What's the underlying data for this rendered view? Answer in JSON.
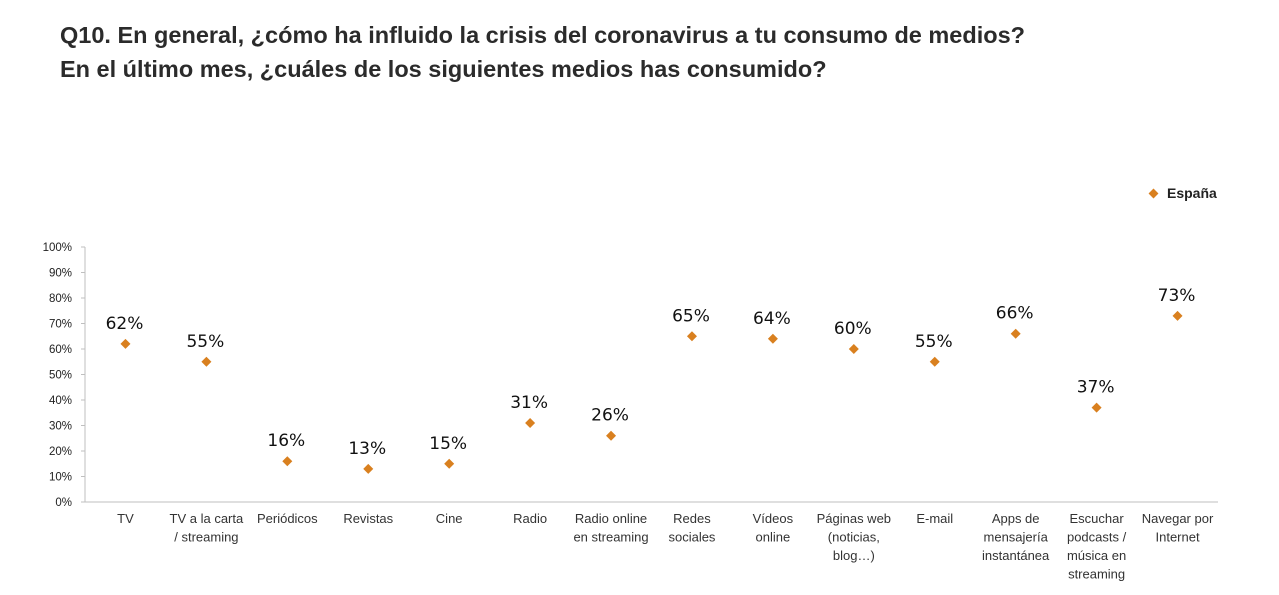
{
  "title": {
    "line1": "Q10. En general, ¿cómo ha influido la crisis del coronavirus a tu consumo de medios?",
    "line2": "En el último mes, ¿cuáles de los siguientes medios has consumido?"
  },
  "legend": {
    "label": "España",
    "marker_icon": "diamond-icon",
    "color": "#D9801F"
  },
  "chart_data": {
    "type": "scatter",
    "categories": [
      [
        "TV"
      ],
      [
        "TV a la carta",
        "/ streaming"
      ],
      [
        "Periódicos"
      ],
      [
        "Revistas"
      ],
      [
        "Cine"
      ],
      [
        "Radio"
      ],
      [
        "Radio online",
        "en streaming"
      ],
      [
        "Redes",
        "sociales"
      ],
      [
        "Vídeos",
        "online"
      ],
      [
        "Páginas web",
        "(noticias,",
        "blog…)"
      ],
      [
        "E-mail"
      ],
      [
        "Apps de",
        "mensajería",
        "instantánea"
      ],
      [
        "Escuchar",
        "podcasts /",
        "música en",
        "streaming"
      ],
      [
        "Navegar por",
        "Internet"
      ]
    ],
    "series": [
      {
        "name": "España",
        "values": [
          62,
          55,
          16,
          13,
          15,
          31,
          26,
          65,
          64,
          60,
          55,
          66,
          37,
          73
        ],
        "labels": [
          "62%",
          "55%",
          "16%",
          "13%",
          "15%",
          "31%",
          "26%",
          "65%",
          "64%",
          "60%",
          "55%",
          "66%",
          "37%",
          "73%"
        ]
      }
    ],
    "yticks": [
      "0%",
      "10%",
      "20%",
      "30%",
      "40%",
      "50%",
      "60%",
      "70%",
      "80%",
      "90%",
      "100%"
    ],
    "ylim": [
      0,
      100
    ],
    "grid": false,
    "legend_position": "top-right",
    "colors": {
      "marker": "#D9801F",
      "axis": "#BFBFBF"
    }
  }
}
